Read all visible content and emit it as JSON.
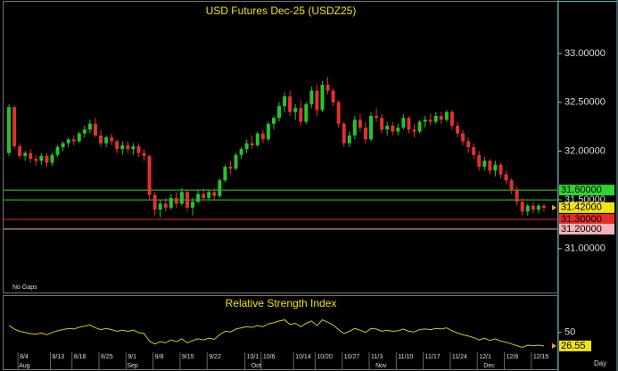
{
  "chart_data": [
    {
      "type": "candlestick",
      "title": "USD Futures Dec-25 (USDZ25)",
      "note": "No Gaps",
      "categories": [
        null,
        null,
        "8/4",
        null,
        null,
        null,
        null,
        null,
        "8/13",
        null,
        null,
        null,
        "8/18",
        null,
        null,
        null,
        null,
        "8/25",
        null,
        null,
        null,
        null,
        "9/1",
        null,
        null,
        null,
        null,
        "9/8",
        null,
        null,
        null,
        null,
        "9/15",
        null,
        null,
        null,
        null,
        "9/22",
        null,
        null,
        null,
        null,
        null,
        null,
        "10/1",
        null,
        null,
        "10/6",
        null,
        null,
        null,
        null,
        null,
        "10/14",
        null,
        null,
        null,
        "10/20",
        null,
        null,
        null,
        null,
        "10/27",
        null,
        null,
        null,
        null,
        "11/3",
        null,
        null,
        null,
        null,
        "11/10",
        null,
        null,
        null,
        null,
        "11/17",
        null,
        null,
        null,
        null,
        "11/24",
        null,
        null,
        null,
        null,
        "12/1",
        null,
        null,
        null,
        null,
        "12/8",
        null,
        null,
        null,
        null,
        "12/15",
        null,
        null
      ],
      "months": [
        null,
        null,
        "Aug",
        null,
        null,
        null,
        null,
        null,
        null,
        null,
        null,
        null,
        null,
        null,
        null,
        null,
        null,
        null,
        null,
        null,
        null,
        null,
        "Sep",
        null,
        null,
        null,
        null,
        null,
        null,
        null,
        null,
        null,
        null,
        null,
        null,
        null,
        null,
        null,
        null,
        null,
        null,
        null,
        null,
        null,
        null,
        "Oct",
        null,
        null,
        null,
        null,
        null,
        null,
        null,
        null,
        null,
        null,
        null,
        null,
        null,
        null,
        null,
        null,
        null,
        null,
        null,
        null,
        null,
        null,
        "Nov",
        null,
        null,
        null,
        null,
        null,
        null,
        null,
        null,
        null,
        null,
        null,
        null,
        null,
        null,
        null,
        null,
        null,
        null,
        null,
        "Dec",
        null,
        null,
        null,
        null,
        null,
        null,
        null,
        null,
        null,
        null,
        null,
        null
      ],
      "ohlc": [
        [
          31.98,
          32.48,
          31.95,
          32.45
        ],
        [
          32.45,
          32.47,
          32.02,
          32.05
        ],
        [
          32.05,
          32.08,
          31.92,
          31.95
        ],
        [
          31.95,
          32.0,
          31.9,
          31.98
        ],
        [
          31.98,
          32.02,
          31.88,
          31.92
        ],
        [
          31.92,
          31.96,
          31.85,
          31.9
        ],
        [
          31.9,
          31.98,
          31.86,
          31.95
        ],
        [
          31.95,
          31.98,
          31.84,
          31.88
        ],
        [
          31.88,
          31.98,
          31.85,
          31.96
        ],
        [
          31.96,
          32.06,
          31.94,
          32.04
        ],
        [
          32.04,
          32.1,
          32.0,
          32.08
        ],
        [
          32.08,
          32.14,
          32.04,
          32.12
        ],
        [
          32.12,
          32.16,
          32.06,
          32.1
        ],
        [
          32.1,
          32.2,
          32.08,
          32.18
        ],
        [
          32.18,
          32.26,
          32.14,
          32.22
        ],
        [
          32.22,
          32.32,
          32.18,
          32.28
        ],
        [
          32.28,
          32.34,
          32.14,
          32.16
        ],
        [
          32.16,
          32.22,
          32.04,
          32.08
        ],
        [
          32.08,
          32.16,
          32.04,
          32.14
        ],
        [
          32.14,
          32.18,
          32.06,
          32.1
        ],
        [
          32.1,
          32.12,
          31.98,
          32.02
        ],
        [
          32.02,
          32.1,
          31.96,
          32.06
        ],
        [
          32.06,
          32.1,
          31.98,
          32.02
        ],
        [
          32.02,
          32.08,
          31.96,
          32.05
        ],
        [
          32.05,
          32.08,
          31.94,
          31.98
        ],
        [
          31.98,
          32.02,
          31.9,
          31.95
        ],
        [
          31.95,
          31.96,
          31.5,
          31.55
        ],
        [
          31.55,
          31.58,
          31.34,
          31.4
        ],
        [
          31.4,
          31.5,
          31.32,
          31.46
        ],
        [
          31.46,
          31.52,
          31.38,
          31.42
        ],
        [
          31.42,
          31.56,
          31.4,
          31.52
        ],
        [
          31.52,
          31.58,
          31.42,
          31.46
        ],
        [
          31.46,
          31.62,
          31.44,
          31.58
        ],
        [
          31.58,
          31.6,
          31.38,
          31.42
        ],
        [
          31.42,
          31.52,
          31.34,
          31.48
        ],
        [
          31.48,
          31.6,
          31.46,
          31.56
        ],
        [
          31.56,
          31.62,
          31.5,
          31.52
        ],
        [
          31.52,
          31.6,
          31.5,
          31.58
        ],
        [
          31.58,
          31.62,
          31.5,
          31.54
        ],
        [
          31.54,
          31.72,
          31.52,
          31.7
        ],
        [
          31.7,
          31.86,
          31.68,
          31.84
        ],
        [
          31.84,
          31.9,
          31.76,
          31.82
        ],
        [
          31.82,
          31.98,
          31.8,
          31.96
        ],
        [
          31.96,
          32.04,
          31.92,
          32.02
        ],
        [
          32.02,
          32.12,
          31.98,
          32.08
        ],
        [
          32.08,
          32.16,
          32.02,
          32.06
        ],
        [
          32.06,
          32.2,
          32.04,
          32.18
        ],
        [
          32.18,
          32.22,
          32.08,
          32.12
        ],
        [
          32.12,
          32.3,
          32.1,
          32.28
        ],
        [
          32.28,
          32.36,
          32.22,
          32.34
        ],
        [
          32.34,
          32.5,
          32.3,
          32.46
        ],
        [
          32.46,
          32.6,
          32.4,
          32.56
        ],
        [
          32.56,
          32.62,
          32.36,
          32.4
        ],
        [
          32.4,
          32.48,
          32.32,
          32.44
        ],
        [
          32.44,
          32.52,
          32.26,
          32.3
        ],
        [
          32.3,
          32.5,
          32.28,
          32.48
        ],
        [
          32.48,
          32.66,
          32.44,
          32.62
        ],
        [
          32.62,
          32.68,
          32.36,
          32.42
        ],
        [
          32.42,
          32.72,
          32.4,
          32.68
        ],
        [
          32.68,
          32.76,
          32.58,
          32.62
        ],
        [
          32.62,
          32.64,
          32.46,
          32.5
        ],
        [
          32.5,
          32.52,
          32.24,
          32.28
        ],
        [
          32.28,
          32.3,
          32.04,
          32.08
        ],
        [
          32.08,
          32.2,
          32.04,
          32.16
        ],
        [
          32.16,
          32.36,
          32.12,
          32.32
        ],
        [
          32.32,
          32.38,
          32.2,
          32.24
        ],
        [
          32.24,
          32.3,
          32.08,
          32.12
        ],
        [
          32.12,
          32.4,
          32.1,
          32.36
        ],
        [
          32.36,
          32.44,
          32.3,
          32.34
        ],
        [
          32.34,
          32.38,
          32.18,
          32.22
        ],
        [
          32.22,
          32.3,
          32.16,
          32.26
        ],
        [
          32.26,
          32.3,
          32.16,
          32.2
        ],
        [
          32.2,
          32.28,
          32.16,
          32.24
        ],
        [
          32.24,
          32.38,
          32.22,
          32.34
        ],
        [
          32.34,
          32.36,
          32.18,
          32.22
        ],
        [
          32.22,
          32.28,
          32.14,
          32.2
        ],
        [
          32.2,
          32.32,
          32.18,
          32.3
        ],
        [
          32.3,
          32.36,
          32.24,
          32.32
        ],
        [
          32.32,
          32.38,
          32.26,
          32.3
        ],
        [
          32.3,
          32.4,
          32.28,
          32.36
        ],
        [
          32.36,
          32.4,
          32.28,
          32.32
        ],
        [
          32.32,
          32.42,
          32.3,
          32.4
        ],
        [
          32.4,
          32.42,
          32.22,
          32.26
        ],
        [
          32.26,
          32.3,
          32.14,
          32.18
        ],
        [
          32.18,
          32.22,
          32.06,
          32.1
        ],
        [
          32.1,
          32.14,
          31.98,
          32.04
        ],
        [
          32.04,
          32.08,
          31.92,
          31.96
        ],
        [
          31.96,
          32.0,
          31.8,
          31.84
        ],
        [
          31.84,
          31.94,
          31.8,
          31.9
        ],
        [
          31.9,
          31.92,
          31.76,
          31.8
        ],
        [
          31.8,
          31.9,
          31.74,
          31.86
        ],
        [
          31.86,
          31.88,
          31.72,
          31.76
        ],
        [
          31.76,
          31.8,
          31.66,
          31.7
        ],
        [
          31.7,
          31.72,
          31.56,
          31.6
        ],
        [
          31.6,
          31.64,
          31.44,
          31.48
        ],
        [
          31.48,
          31.52,
          31.34,
          31.38
        ],
        [
          31.38,
          31.46,
          31.34,
          31.44
        ],
        [
          31.44,
          31.48,
          31.36,
          31.4
        ],
        [
          31.4,
          31.46,
          31.36,
          31.44
        ],
        [
          31.44,
          31.46,
          31.38,
          31.42
        ]
      ],
      "up_color": "#27c427",
      "down_color": "#e23030",
      "ylim": [
        30.55,
        33.53
      ],
      "yticks": [
        {
          "value": 31,
          "label": "31.00000"
        },
        {
          "value": 31.5,
          "label": "31.50000"
        },
        {
          "value": 32,
          "label": "32.00000"
        },
        {
          "value": 32.5,
          "label": "32.50000"
        },
        {
          "value": 33,
          "label": "33.00000"
        }
      ],
      "levels": [
        {
          "value": 31.6,
          "label": "31.60000",
          "color": "#2fd52f"
        },
        {
          "value": 31.5,
          "color": "#2fd52f"
        },
        {
          "value": 31.3,
          "label": "31.30000",
          "color": "#e52b2b"
        },
        {
          "value": 31.2,
          "label": "31.20000",
          "color": "#f2b6b6"
        }
      ],
      "last_price": {
        "value": 31.42,
        "label": "31.42000",
        "color": "#f2e313"
      }
    },
    {
      "type": "line",
      "title": "Relative Strength Index",
      "period": "Day",
      "color": "#d8c61c",
      "values": [
        62,
        56,
        52,
        50,
        48,
        47,
        49,
        46,
        50,
        53,
        55,
        57,
        56,
        59,
        61,
        63,
        58,
        55,
        57,
        55,
        52,
        54,
        52,
        54,
        50,
        48,
        35,
        30,
        34,
        32,
        37,
        34,
        39,
        32,
        36,
        39,
        37,
        40,
        38,
        46,
        52,
        51,
        56,
        58,
        60,
        59,
        62,
        60,
        65,
        67,
        70,
        72,
        64,
        66,
        60,
        66,
        70,
        62,
        72,
        68,
        63,
        55,
        48,
        52,
        57,
        54,
        50,
        57,
        56,
        52,
        54,
        52,
        53,
        56,
        52,
        51,
        55,
        56,
        55,
        57,
        56,
        58,
        53,
        49,
        46,
        44,
        41,
        37,
        40,
        36,
        39,
        35,
        33,
        30,
        27,
        24,
        28,
        27,
        28,
        26.55
      ],
      "ylim": [
        0,
        100
      ],
      "yticks": [
        50
      ],
      "last_color": "#f2e313"
    }
  ]
}
